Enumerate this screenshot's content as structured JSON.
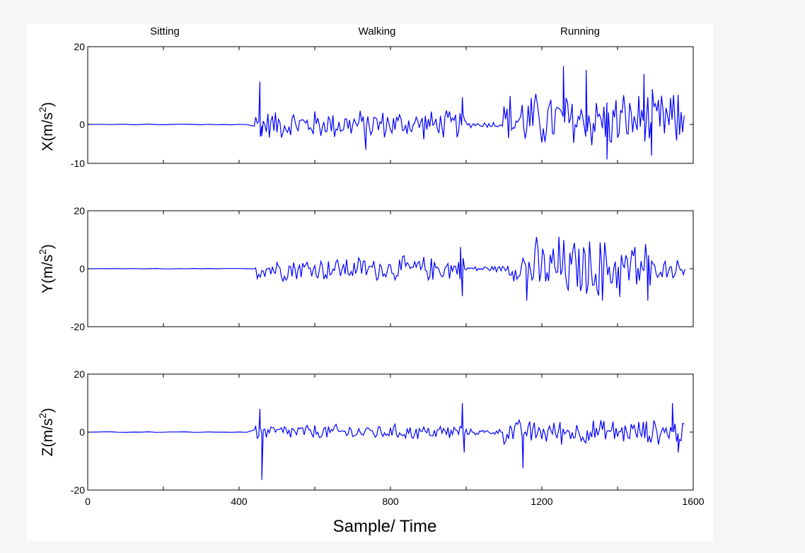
{
  "chart_data": {
    "type": "line",
    "phase_labels": [
      "Sitting",
      "Walking",
      "Running"
    ],
    "xlabel": "Sample/ Time",
    "xlim": [
      0,
      1600
    ],
    "xticks": [
      "0",
      "400",
      "800",
      "1200",
      "1600"
    ],
    "line_color": "#0000ff",
    "grid": false,
    "panels": [
      {
        "ylabel_base": "X(m/s",
        "ylabel_sup": "2",
        "ylabel_close": ")",
        "ylim": [
          -10,
          20
        ],
        "yticks": [
          "20",
          "0",
          "-10"
        ],
        "ytick_values": [
          20,
          0,
          -10
        ],
        "segments": [
          {
            "x_start": 0,
            "x_end": 440,
            "amp": 0.1,
            "mean": 0
          },
          {
            "x_start": 440,
            "x_end": 1000,
            "amp": 3.5,
            "mean": 0
          },
          {
            "x_start": 1000,
            "x_end": 1100,
            "amp": 0.8,
            "mean": 0
          },
          {
            "x_start": 1100,
            "x_end": 1580,
            "amp": 7,
            "mean": 1
          }
        ],
        "spikes": [
          [
            455,
            11
          ],
          [
            460,
            -3
          ],
          [
            735,
            -6.5
          ],
          [
            990,
            7
          ],
          [
            1257,
            15
          ],
          [
            1317,
            14
          ],
          [
            1372,
            -9
          ],
          [
            1470,
            13
          ],
          [
            1490,
            -8
          ]
        ]
      },
      {
        "ylabel_base": "Y(m/s",
        "ylabel_sup": "2",
        "ylabel_close": ")",
        "ylim": [
          -20,
          20
        ],
        "yticks": [
          "20",
          "0",
          "-20"
        ],
        "ytick_values": [
          20,
          0,
          -20
        ],
        "segments": [
          {
            "x_start": 0,
            "x_end": 440,
            "amp": 0.1,
            "mean": 0
          },
          {
            "x_start": 440,
            "x_end": 1000,
            "amp": 4,
            "mean": 0
          },
          {
            "x_start": 1000,
            "x_end": 1110,
            "amp": 1,
            "mean": 0
          },
          {
            "x_start": 1110,
            "x_end": 1150,
            "amp": 4,
            "mean": 0
          },
          {
            "x_start": 1150,
            "x_end": 1490,
            "amp": 10,
            "mean": 0
          },
          {
            "x_start": 1490,
            "x_end": 1580,
            "amp": 3,
            "mean": 0
          }
        ],
        "spikes": [
          [
            985,
            7.5
          ],
          [
            990,
            -9.5
          ],
          [
            1160,
            -11
          ],
          [
            1245,
            11
          ],
          [
            1360,
            -11
          ],
          [
            1480,
            -11
          ]
        ]
      },
      {
        "ylabel_base": "Z(m/s",
        "ylabel_sup": "2",
        "ylabel_close": ")",
        "ylim": [
          -20,
          20
        ],
        "yticks": [
          "20",
          "0",
          "-20"
        ],
        "ytick_values": [
          20,
          0,
          -20
        ],
        "segments": [
          {
            "x_start": 0,
            "x_end": 440,
            "amp": 0.1,
            "mean": 0
          },
          {
            "x_start": 440,
            "x_end": 1000,
            "amp": 2.5,
            "mean": 0
          },
          {
            "x_start": 1000,
            "x_end": 1100,
            "amp": 1,
            "mean": 0
          },
          {
            "x_start": 1100,
            "x_end": 1580,
            "amp": 4,
            "mean": 0
          }
        ],
        "spikes": [
          [
            455,
            8
          ],
          [
            460,
            -16.5
          ],
          [
            990,
            10
          ],
          [
            995,
            -7
          ],
          [
            1150,
            -12.5
          ],
          [
            1545,
            10
          ],
          [
            1560,
            -7
          ]
        ]
      }
    ]
  }
}
